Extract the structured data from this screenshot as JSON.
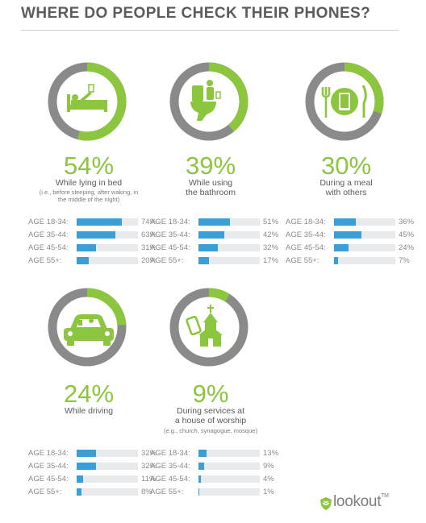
{
  "title": "WHERE DO PEOPLE CHECK THEIR PHONES?",
  "brand": "lookout",
  "brand_mark": "TM",
  "colors": {
    "ring_active": "#8cc63f",
    "ring_track": "#8a8a8a",
    "bar": "#3a9fd8",
    "bar_track": "#e9eaec"
  },
  "chart_data": [
    {
      "type": "pie",
      "percent": 54,
      "label": "While lying in bed",
      "sublabel": "(i.e., before sleeping, after waking, in the middle of the night)",
      "icon": "bed-icon",
      "age_groups": [
        {
          "label": "AGE 18-34:",
          "value": 74
        },
        {
          "label": "AGE 35-44:",
          "value": 63
        },
        {
          "label": "AGE 45-54:",
          "value": 31
        },
        {
          "label": "AGE 55+:",
          "value": 20
        }
      ]
    },
    {
      "type": "pie",
      "percent": 39,
      "label": "While using the bathroom",
      "sublabel": "",
      "icon": "toilet-icon",
      "age_groups": [
        {
          "label": "AGE 18-34:",
          "value": 51
        },
        {
          "label": "AGE 35-44:",
          "value": 42
        },
        {
          "label": "AGE 45-54:",
          "value": 32
        },
        {
          "label": "AGE 55+:",
          "value": 17
        }
      ]
    },
    {
      "type": "pie",
      "percent": 30,
      "label": "During a meal with others",
      "sublabel": "",
      "icon": "meal-icon",
      "age_groups": [
        {
          "label": "AGE 18-34:",
          "value": 36
        },
        {
          "label": "AGE 35-44:",
          "value": 45
        },
        {
          "label": "AGE 45-54:",
          "value": 24
        },
        {
          "label": "AGE 55+:",
          "value": 7
        }
      ]
    },
    {
      "type": "pie",
      "percent": 24,
      "label": "While driving",
      "sublabel": "",
      "icon": "car-icon",
      "age_groups": [
        {
          "label": "AGE 18-34:",
          "value": 32
        },
        {
          "label": "AGE 35-44:",
          "value": 32
        },
        {
          "label": "AGE 45-54:",
          "value": 11
        },
        {
          "label": "AGE 55+:",
          "value": 8
        }
      ]
    },
    {
      "type": "pie",
      "percent": 9,
      "label": "During services at a house of worship",
      "sublabel": "(e.g., church, synagogue, mosque)",
      "icon": "church-icon",
      "age_groups": [
        {
          "label": "AGE 18-34:",
          "value": 13
        },
        {
          "label": "AGE 35-44:",
          "value": 9
        },
        {
          "label": "AGE 45-54:",
          "value": 4
        },
        {
          "label": "AGE 55+:",
          "value": 1
        }
      ]
    }
  ]
}
